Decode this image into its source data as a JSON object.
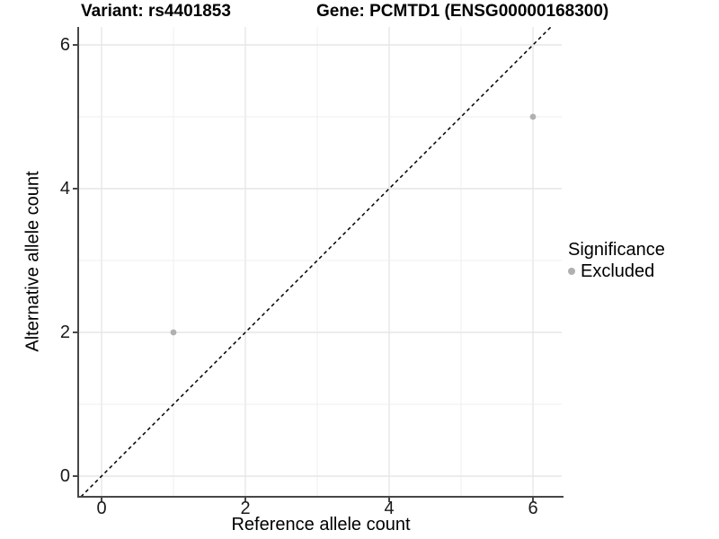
{
  "chart_data": {
    "type": "scatter",
    "title_left": "Variant: rs4401853",
    "title_right": "Gene: PCMTD1 (ENSG00000168300)",
    "xlabel": "Reference allele count",
    "ylabel": "Alternative allele count",
    "xlim": [
      -0.3125,
      6.4
    ],
    "ylim": [
      -0.2875,
      6.25
    ],
    "x_major_ticks": [
      0,
      2,
      4,
      6
    ],
    "y_major_ticks": [
      0,
      2,
      4,
      6
    ],
    "x_gridlines": [
      0,
      1,
      2,
      3,
      4,
      5,
      6
    ],
    "y_gridlines": [
      0,
      1,
      2,
      3,
      4,
      5,
      6
    ],
    "grid": true,
    "background": "#ffffff",
    "major_grid_color": "#e6e6e6",
    "minor_grid_color": "#efefef",
    "axis_color": "#474747",
    "reference_line": {
      "kind": "identity",
      "style": "dashed",
      "color": "#000000"
    },
    "series": [
      {
        "name": "Excluded",
        "color": "#b0b0b0",
        "points": [
          {
            "x": 1,
            "y": 2
          },
          {
            "x": 6,
            "y": 5
          }
        ]
      }
    ],
    "legend": {
      "title": "Significance",
      "position": "right",
      "items": [
        {
          "label": "Excluded",
          "color": "#b0b0b0"
        }
      ]
    }
  }
}
